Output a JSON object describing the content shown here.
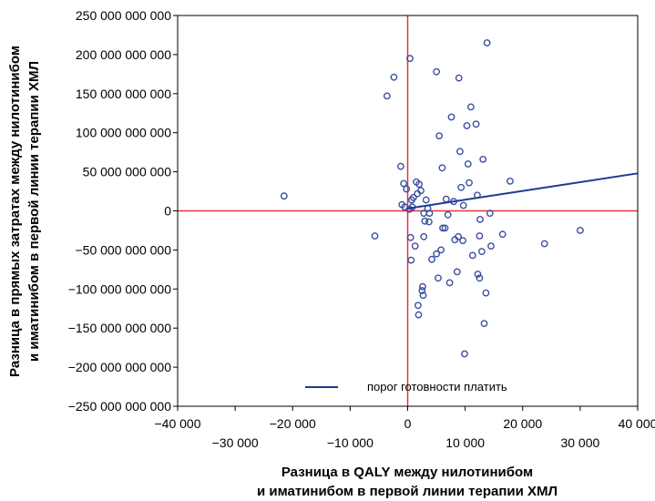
{
  "chart_data": {
    "type": "scatter",
    "title": "",
    "xlabel_lines": [
      "Разница в QALY между нилотинибом",
      "и иматинибом в первой линии терапии ХМЛ"
    ],
    "ylabel_lines": [
      "Разница в прямых затратах между нилотинибом",
      "и иматинибом в первой линии терапии ХМЛ"
    ],
    "xlim": [
      -40000,
      40000
    ],
    "ylim": [
      -250000000000,
      250000000000
    ],
    "x_ticks_upper": [
      "−40 000",
      "−20 000",
      "0",
      "20 000",
      "40 000"
    ],
    "x_ticks_upper_values": [
      -40000,
      -20000,
      0,
      20000,
      40000
    ],
    "x_ticks_lower": [
      "−30 000",
      "−10 000",
      "10 000",
      "30 000"
    ],
    "x_ticks_lower_values": [
      -30000,
      -10000,
      10000,
      30000
    ],
    "y_ticks": [
      "250 000 000 000",
      "200 000 000 000",
      "150 000 000 000",
      "100 000 000 000",
      "50 000 000 000",
      "0",
      "−50 000 000 000",
      "−100 000 000 000",
      "−150 000 000 000",
      "−200 000 000 000",
      "−250 000 000 000"
    ],
    "y_tick_values": [
      250000000000,
      200000000000,
      150000000000,
      100000000000,
      50000000000,
      0,
      -50000000000,
      -100000000000,
      -150000000000,
      -200000000000,
      -250000000000
    ],
    "grid": false,
    "legend_position": "bottom-center",
    "series": [
      {
        "name": "",
        "type": "scatter",
        "color": "#3a4fa0",
        "points": [
          [
            -21500,
            19000000000
          ],
          [
            -5700,
            -32000000000
          ],
          [
            -3600,
            147000000000
          ],
          [
            -2400,
            171000000000
          ],
          [
            -1200,
            57000000000
          ],
          [
            -700,
            35000000000
          ],
          [
            -1000,
            8000000000
          ],
          [
            -500,
            5000000000
          ],
          [
            -200,
            28000000000
          ],
          [
            300,
            2000000000
          ],
          [
            400,
            195000000000
          ],
          [
            700,
            14000000000
          ],
          [
            800,
            5000000000
          ],
          [
            500,
            -34000000000
          ],
          [
            600,
            -63000000000
          ],
          [
            1000,
            17000000000
          ],
          [
            1300,
            -45000000000
          ],
          [
            1500,
            37000000000
          ],
          [
            1700,
            22000000000
          ],
          [
            1800,
            -121000000000
          ],
          [
            1900,
            -133000000000
          ],
          [
            2000,
            34000000000
          ],
          [
            2300,
            26000000000
          ],
          [
            2500,
            -102000000000
          ],
          [
            2600,
            -97000000000
          ],
          [
            2700,
            -108000000000
          ],
          [
            2800,
            -33000000000
          ],
          [
            2800,
            -3000000000
          ],
          [
            3000,
            -13000000000
          ],
          [
            3200,
            14000000000
          ],
          [
            3500,
            3000000000
          ],
          [
            3700,
            -14000000000
          ],
          [
            3800,
            -3000000000
          ],
          [
            4200,
            -62000000000
          ],
          [
            5000,
            -55000000000
          ],
          [
            5000,
            178000000000
          ],
          [
            5300,
            -86000000000
          ],
          [
            5500,
            96000000000
          ],
          [
            5800,
            -50000000000
          ],
          [
            6000,
            55000000000
          ],
          [
            6100,
            -22000000000
          ],
          [
            6500,
            -22000000000
          ],
          [
            6700,
            15000000000
          ],
          [
            7000,
            -5000000000
          ],
          [
            7300,
            -92000000000
          ],
          [
            7600,
            120000000000
          ],
          [
            8000,
            12000000000
          ],
          [
            8200,
            -37000000000
          ],
          [
            8600,
            -78000000000
          ],
          [
            8800,
            -33000000000
          ],
          [
            8900,
            170000000000
          ],
          [
            9100,
            76000000000
          ],
          [
            9300,
            30000000000
          ],
          [
            9600,
            -38000000000
          ],
          [
            9700,
            7000000000
          ],
          [
            9900,
            -183000000000
          ],
          [
            10300,
            109000000000
          ],
          [
            10500,
            60000000000
          ],
          [
            10700,
            36000000000
          ],
          [
            11000,
            133000000000
          ],
          [
            11300,
            -57000000000
          ],
          [
            11900,
            111000000000
          ],
          [
            12100,
            20000000000
          ],
          [
            12200,
            -81000000000
          ],
          [
            12500,
            -86000000000
          ],
          [
            12500,
            -32000000000
          ],
          [
            12600,
            -11000000000
          ],
          [
            12900,
            -52000000000
          ],
          [
            13100,
            66000000000
          ],
          [
            13300,
            -144000000000
          ],
          [
            13600,
            -105000000000
          ],
          [
            13800,
            215000000000
          ],
          [
            14300,
            -3000000000
          ],
          [
            14500,
            -45000000000
          ],
          [
            16500,
            -30000000000
          ],
          [
            17800,
            38000000000
          ],
          [
            23800,
            -42000000000
          ],
          [
            30000,
            -25000000000
          ]
        ]
      }
    ],
    "threshold_line": {
      "label": "порог готовности платить",
      "color": "#1f3a93",
      "from": [
        0,
        3000000000
      ],
      "to": [
        40000,
        48000000000
      ]
    },
    "reference_lines": {
      "color": "#e8323c",
      "x": 0,
      "y": 0
    }
  }
}
